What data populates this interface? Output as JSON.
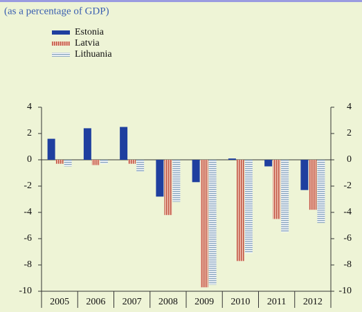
{
  "chart_data": {
    "type": "bar",
    "subtitle": "(as a percentage of GDP)",
    "categories": [
      "2005",
      "2006",
      "2007",
      "2008",
      "2009",
      "2010",
      "2011",
      "2012"
    ],
    "series": [
      {
        "name": "Estonia",
        "color": "#1f3f9f",
        "values": [
          1.6,
          2.4,
          2.5,
          -2.8,
          -1.7,
          0.1,
          -0.5,
          -2.3
        ]
      },
      {
        "name": "Latvia",
        "color": "#c05542",
        "values": [
          -0.3,
          -0.4,
          -0.3,
          -4.2,
          -9.7,
          -7.7,
          -4.5,
          -3.8
        ]
      },
      {
        "name": "Lithuania",
        "color": "#8aa6c0",
        "values": [
          -0.5,
          -0.3,
          -0.9,
          -3.2,
          -9.5,
          -7.1,
          -5.5,
          -4.8
        ]
      }
    ],
    "ylim": [
      -10,
      4
    ],
    "yticks": [
      -10,
      -8,
      -6,
      -4,
      -2,
      0,
      2,
      4
    ],
    "y2lim": [
      -10,
      4
    ],
    "y2ticks": [
      -10,
      -8,
      -6,
      -4,
      -2,
      0,
      2,
      4
    ]
  }
}
